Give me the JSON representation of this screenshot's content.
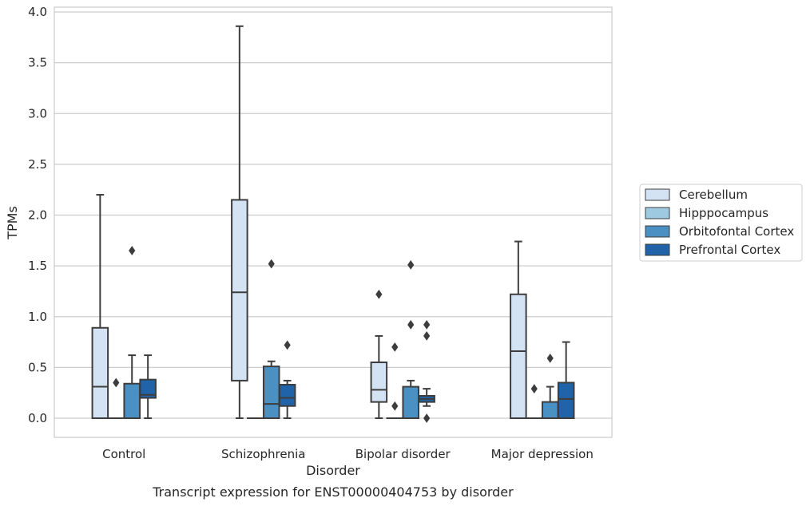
{
  "caption": "Transcript expression for ENST00000404753 by disorder",
  "chart_data": {
    "type": "box",
    "xlabel": "Disorder",
    "ylabel": "TPMs",
    "ylim": [
      -0.18,
      4.06
    ],
    "yticks": [
      "0.0",
      "0.5",
      "1.0",
      "1.5",
      "2.0",
      "2.5",
      "3.0",
      "3.5",
      "4.0"
    ],
    "grid": "horizontal",
    "legend_position": "right",
    "categories": [
      "Control",
      "Schizophrenia",
      "Bipolar disorder",
      "Major depression"
    ],
    "series": [
      {
        "name": "Cerebellum",
        "color": "#d3e3f3",
        "boxes": [
          {
            "whislo": 0.0,
            "q1": 0.0,
            "med": 0.31,
            "q3": 0.89,
            "whishi": 2.2,
            "fliers": []
          },
          {
            "whislo": 0.0,
            "q1": 0.37,
            "med": 1.24,
            "q3": 2.15,
            "whishi": 3.86,
            "fliers": []
          },
          {
            "whislo": 0.0,
            "q1": 0.16,
            "med": 0.28,
            "q3": 0.55,
            "whishi": 0.81,
            "fliers": [
              1.22
            ]
          },
          {
            "whislo": 0.0,
            "q1": 0.0,
            "med": 0.66,
            "q3": 1.22,
            "whishi": 1.74,
            "fliers": []
          }
        ]
      },
      {
        "name": "Hipppocampus",
        "color": "#9ecae1",
        "boxes": [
          {
            "whislo": 0.0,
            "q1": 0.0,
            "med": 0.0,
            "q3": 0.0,
            "whishi": 0.0,
            "fliers": [
              0.35
            ]
          },
          {
            "whislo": 0.0,
            "q1": 0.0,
            "med": 0.0,
            "q3": 0.0,
            "whishi": 0.0,
            "fliers": []
          },
          {
            "whislo": 0.0,
            "q1": 0.0,
            "med": 0.0,
            "q3": 0.0,
            "whishi": 0.0,
            "fliers": [
              0.12,
              0.7
            ]
          },
          {
            "whislo": 0.0,
            "q1": 0.0,
            "med": 0.0,
            "q3": 0.0,
            "whishi": 0.0,
            "fliers": [
              0.29
            ]
          }
        ]
      },
      {
        "name": "Orbitofontal Cortex",
        "color": "#4a90c2",
        "boxes": [
          {
            "whislo": 0.0,
            "q1": 0.0,
            "med": 0.0,
            "q3": 0.34,
            "whishi": 0.62,
            "fliers": [
              1.65
            ]
          },
          {
            "whislo": 0.0,
            "q1": 0.0,
            "med": 0.14,
            "q3": 0.51,
            "whishi": 0.56,
            "fliers": [
              1.52
            ]
          },
          {
            "whislo": 0.0,
            "q1": 0.0,
            "med": 0.0,
            "q3": 0.31,
            "whishi": 0.37,
            "fliers": [
              0.92,
              1.51
            ]
          },
          {
            "whislo": 0.0,
            "q1": 0.0,
            "med": 0.0,
            "q3": 0.16,
            "whishi": 0.31,
            "fliers": [
              0.59
            ]
          }
        ]
      },
      {
        "name": "Prefrontal Cortex",
        "color": "#2163a8",
        "boxes": [
          {
            "whislo": 0.0,
            "q1": 0.2,
            "med": 0.23,
            "q3": 0.38,
            "whishi": 0.62,
            "fliers": []
          },
          {
            "whislo": 0.0,
            "q1": 0.12,
            "med": 0.2,
            "q3": 0.33,
            "whishi": 0.37,
            "fliers": [
              0.72
            ]
          },
          {
            "whislo": 0.12,
            "q1": 0.16,
            "med": 0.19,
            "q3": 0.22,
            "whishi": 0.29,
            "fliers": [
              0.0,
              0.81,
              0.92
            ]
          },
          {
            "whislo": 0.0,
            "q1": 0.0,
            "med": 0.19,
            "q3": 0.35,
            "whishi": 0.75,
            "fliers": []
          }
        ]
      }
    ]
  }
}
